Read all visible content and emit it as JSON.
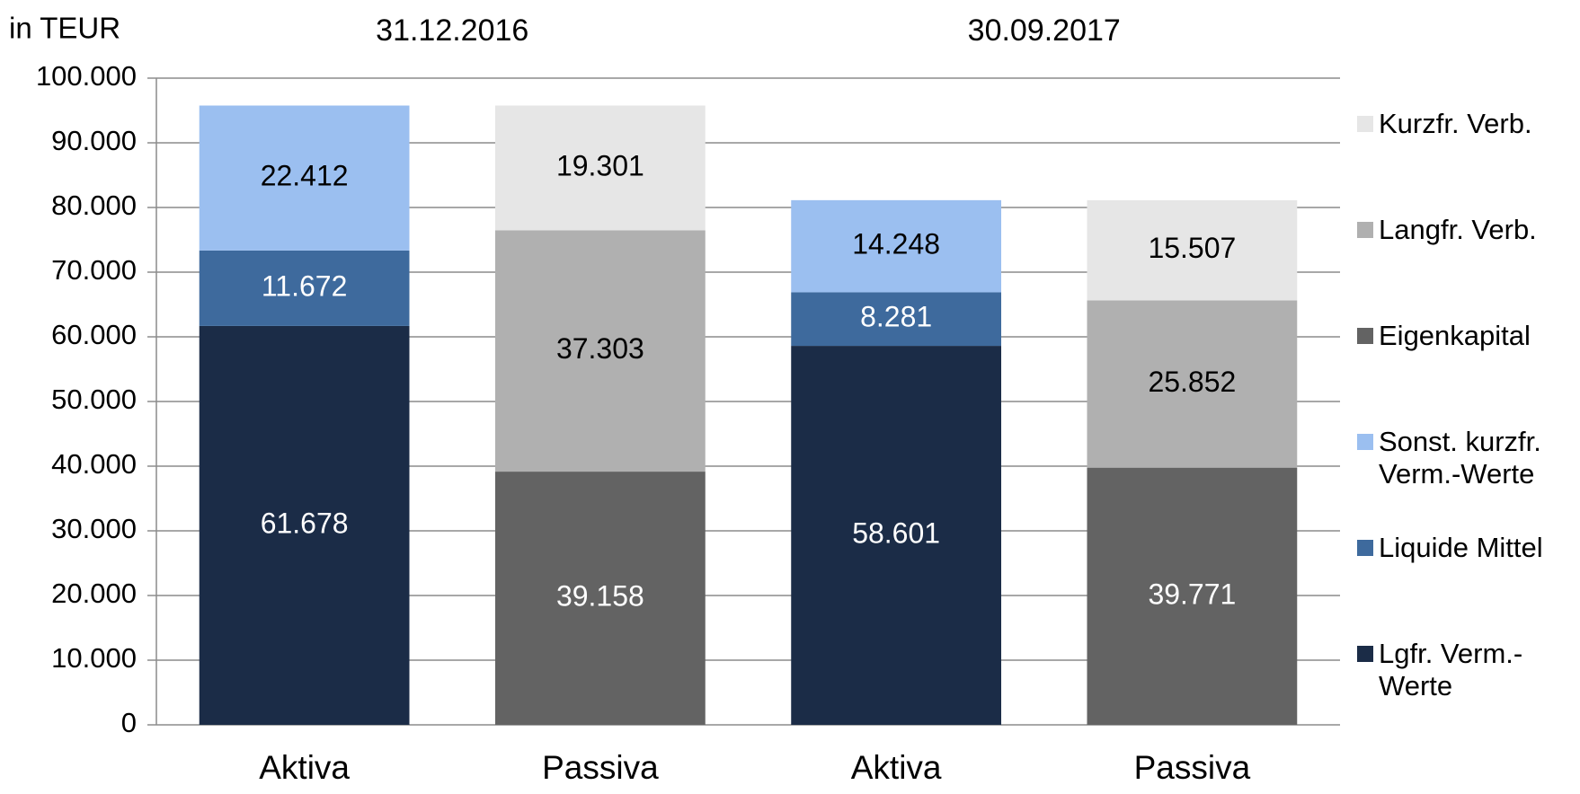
{
  "chart_data": {
    "type": "stacked-bar",
    "unit_label": "in TEUR",
    "group_labels": [
      "31.12.2016",
      "30.09.2017"
    ],
    "categories": [
      "Aktiva",
      "Passiva",
      "Aktiva",
      "Passiva"
    ],
    "series": [
      {
        "name": "Lgfr. Verm.-Werte",
        "color": "#1b2c47",
        "values": [
          61678,
          null,
          58601,
          null
        ],
        "value_labels": [
          "61.678",
          null,
          "58.601",
          null
        ]
      },
      {
        "name": "Liquide Mittel",
        "color": "#3e6a9d",
        "values": [
          11672,
          null,
          8281,
          null
        ],
        "value_labels": [
          "11.672",
          null,
          "8.281",
          null
        ]
      },
      {
        "name": "Sonst. kurzfr. Verm.-Werte",
        "color": "#9bbff0",
        "values": [
          22412,
          null,
          14248,
          null
        ],
        "value_labels": [
          "22.412",
          null,
          "14.248",
          null
        ]
      },
      {
        "name": "Eigenkapital",
        "color": "#636363",
        "values": [
          null,
          39158,
          null,
          39771
        ],
        "value_labels": [
          null,
          "39.158",
          null,
          "39.771"
        ]
      },
      {
        "name": "Langfr. Verb.",
        "color": "#b0b0b0",
        "values": [
          null,
          37303,
          null,
          25852
        ],
        "value_labels": [
          null,
          "37.303",
          null,
          "25.852"
        ]
      },
      {
        "name": "Kurzfr. Verb.",
        "color": "#e6e6e6",
        "values": [
          null,
          19301,
          null,
          15507
        ],
        "value_labels": [
          null,
          "19.301",
          null,
          "15.507"
        ]
      }
    ],
    "ylim": [
      0,
      100000
    ],
    "yticks": [
      0,
      {
        "value": 10000,
        "label": "10.000"
      },
      {
        "value": 20000,
        "label": "20.000"
      },
      {
        "value": 30000,
        "label": "30.000"
      },
      {
        "value": 40000,
        "label": "40.000"
      },
      {
        "value": 50000,
        "label": "50.000"
      },
      {
        "value": 60000,
        "label": "60.000"
      },
      {
        "value": 70000,
        "label": "70.000"
      },
      {
        "value": 80000,
        "label": "80.000"
      },
      {
        "value": 90000,
        "label": "90.000"
      },
      {
        "value": 100000,
        "label": "100.000"
      }
    ],
    "grid": true,
    "legend": "right"
  }
}
